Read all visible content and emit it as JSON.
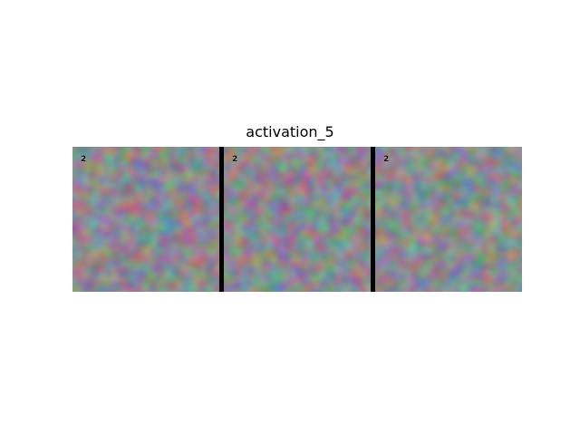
{
  "title": "activation_5",
  "panels": [
    {
      "label": "2"
    },
    {
      "label": "2"
    },
    {
      "label": "2"
    }
  ]
}
